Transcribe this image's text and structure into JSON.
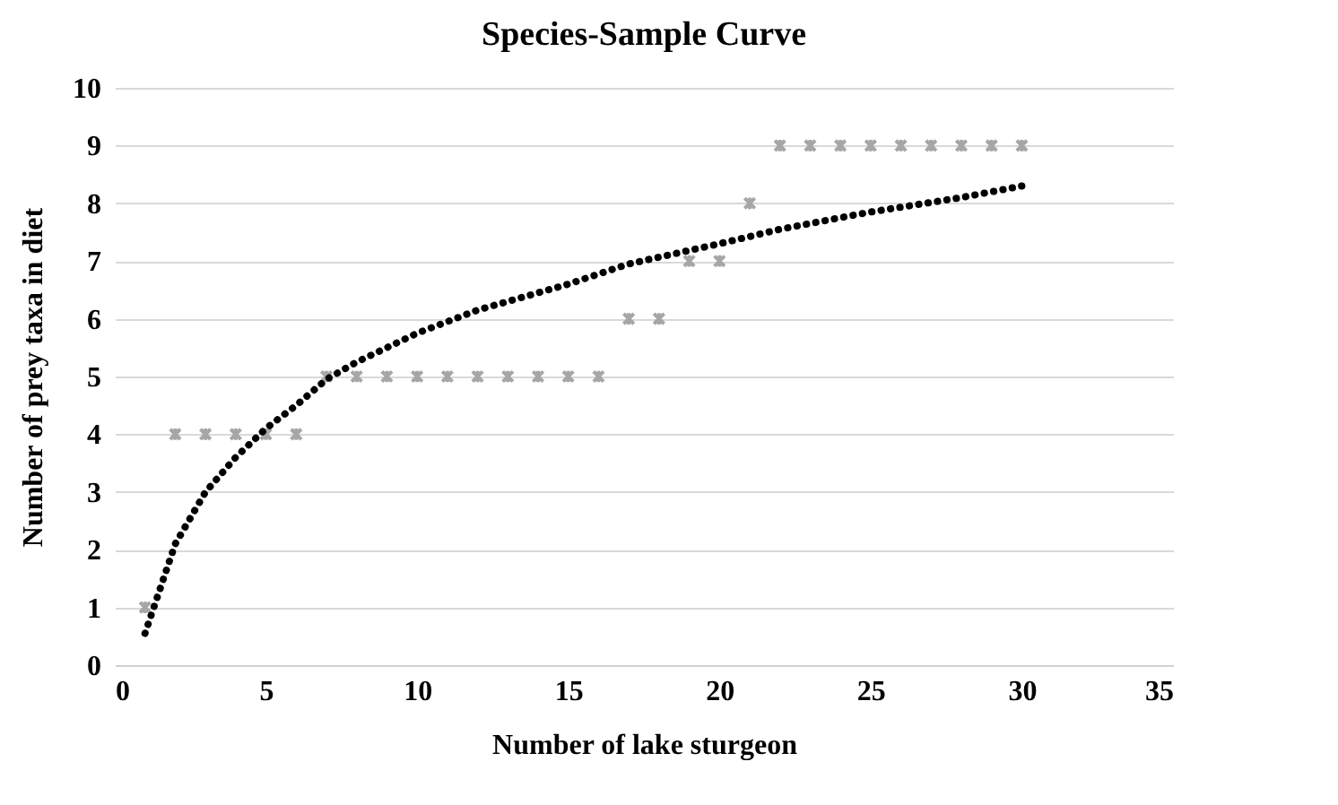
{
  "chart_data": {
    "type": "scatter",
    "title": "Species-Sample Curve",
    "xlabel": "Number of lake sturgeon",
    "ylabel": "Number of prey taxa in diet",
    "xlim": [
      0,
      35
    ],
    "xticks": [
      0,
      5,
      10,
      15,
      20,
      25,
      30,
      35
    ],
    "ylim": [
      0,
      10
    ],
    "yticks": [
      0,
      1,
      2,
      3,
      4,
      5,
      6,
      7,
      8,
      9,
      10
    ],
    "grid": "y",
    "series": [
      {
        "marker": "cross",
        "color": "#a6a6a6",
        "x": [
          1,
          2,
          3,
          4,
          5,
          6,
          7,
          8,
          9,
          10,
          11,
          12,
          13,
          14,
          15,
          16,
          17,
          18,
          19,
          20,
          21,
          22,
          23,
          24,
          25,
          26,
          27,
          28,
          29,
          30
        ],
        "values": [
          1,
          4,
          4,
          4,
          4,
          4,
          5,
          5,
          5,
          5,
          5,
          5,
          5,
          5,
          5,
          5,
          6,
          6,
          7,
          7,
          8,
          9,
          9,
          9,
          9,
          9,
          9,
          9,
          9,
          9
        ]
      },
      {
        "type": "line",
        "color": "#000000",
        "line_style": "dotted",
        "x": [
          1,
          2,
          3,
          4,
          5,
          6,
          7,
          8,
          10,
          12,
          15,
          17,
          20,
          22,
          25,
          28,
          30
        ],
        "values": [
          0.55,
          2.1,
          3.0,
          3.6,
          4.1,
          4.5,
          4.95,
          5.25,
          5.75,
          6.15,
          6.6,
          6.95,
          7.3,
          7.55,
          7.85,
          8.1,
          8.3
        ]
      }
    ]
  }
}
